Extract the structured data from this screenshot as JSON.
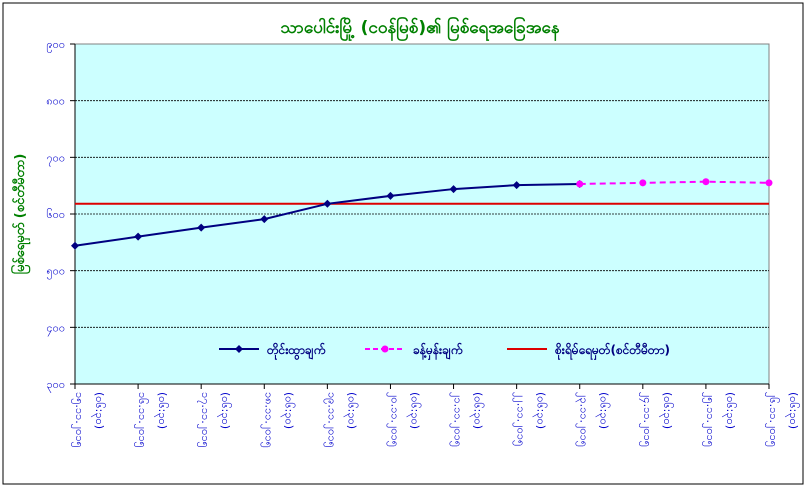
{
  "chart_data": {
    "type": "line",
    "title": "သာပေါင်းမြို့ (ငဝန်မြစ်)၏ မြစ်ရေအခြေအနေ",
    "ylabel": "မြစ်ရေမှတ် (စင်တီမီတာ)",
    "xlabel": "",
    "ylim": [
      300,
      900
    ],
    "yticks": [
      900,
      800,
      700,
      600,
      500,
      400,
      300
    ],
    "ytick_labels": [
      "၉၀၀",
      "၈၀၀",
      "၇၀၀",
      "၆၀၀",
      "၅၀၀",
      "၄၀၀",
      "၃၀၀"
    ],
    "categories": [
      [
        "၁၅.၁၁.၂၀၁၅",
        "(၀၆:၃၀)"
      ],
      [
        "၁၆.၁၁.၂၀၁၅",
        "(၀၆:၃၀)"
      ],
      [
        "၁၇.၁၁.၂၀၁၅",
        "(၀၆:၃၀)"
      ],
      [
        "၁၈.၁၁.၂၀၁၅",
        "(၀၆:၃၀)"
      ],
      [
        "၁၉.၁၁.၂၀၁၅",
        "(၀၆:၃၀)"
      ],
      [
        "၂၀.၁၁.၂၀၁၅",
        "(၀၆:၃၀)"
      ],
      [
        "၂၁.၁၁.၂၀၁၅",
        "(၀၆:၃၀)"
      ],
      [
        "၂၂.၁၁.၂၀၁၅",
        "(၀၆:၃၀)"
      ],
      [
        "၂၃.၁၁.၂၀၁၅",
        "(၀၆:၃၀)"
      ],
      [
        "၂၄.၁၁.၂၀၁၅",
        "(၀၆:၃၀)"
      ],
      [
        "၂၅.၁၁.၂၀၁၅",
        "(၀၆:၃၀)"
      ],
      [
        "၂၆.၁၁.၂၀၁၅",
        "(၀၆:၃၀)"
      ]
    ],
    "series": [
      {
        "name": "တိုင်းထွာချက်",
        "color": "#000080",
        "style": "solid",
        "values": [
          544,
          560,
          576,
          591,
          618,
          632,
          644,
          651,
          653,
          null,
          null,
          null
        ]
      },
      {
        "name": "ခန့်မှန်းချက်",
        "color": "#FF00FF",
        "style": "dashed",
        "values": [
          null,
          null,
          null,
          null,
          null,
          null,
          null,
          null,
          653,
          655,
          657,
          655
        ]
      },
      {
        "name": "စိုးရိမ်ရေမှတ်(စင်တီမီတာ)",
        "color": "#DD0000",
        "style": "solid",
        "constant": 618
      }
    ],
    "grid": true,
    "legend": "bottom-inside",
    "colors": {
      "plot_bg": "#CCFFFF",
      "title": "#008000",
      "ticks": "#0000CC"
    }
  }
}
